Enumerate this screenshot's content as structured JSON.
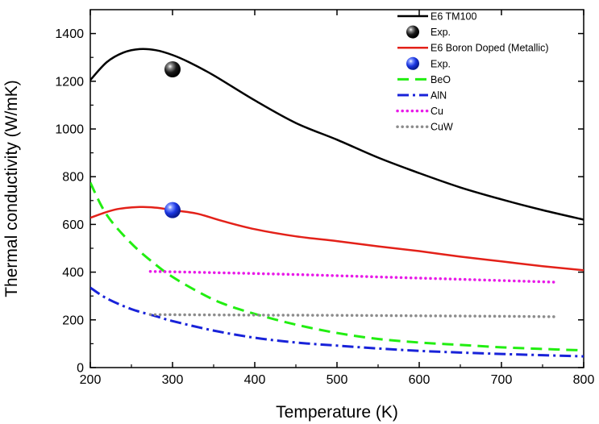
{
  "chart_data": {
    "type": "line",
    "xlabel": "Temperature (K)",
    "ylabel": "Thermal conductivity (W/mK)",
    "xlim": [
      200,
      800
    ],
    "ylim": [
      0,
      1500
    ],
    "xticks": [
      200,
      300,
      400,
      500,
      600,
      700,
      800
    ],
    "yticks": [
      0,
      200,
      400,
      600,
      800,
      1000,
      1200,
      1400
    ],
    "legend_position": "top-right",
    "series": [
      {
        "name": "E6 TM100",
        "kind": "line",
        "style": "solid",
        "color": "#000000",
        "x": [
          200,
          220,
          240,
          260,
          280,
          300,
          320,
          350,
          400,
          450,
          500,
          550,
          600,
          650,
          700,
          750,
          800
        ],
        "y": [
          1205,
          1280,
          1320,
          1335,
          1330,
          1310,
          1280,
          1225,
          1120,
          1025,
          955,
          880,
          815,
          755,
          705,
          660,
          620
        ]
      },
      {
        "name": "Exp.",
        "kind": "marker",
        "marker_style": "sphere",
        "color": "#000000",
        "x": [
          300
        ],
        "y": [
          1250
        ]
      },
      {
        "name": "E6 Boron Doped (Metallic)",
        "kind": "line",
        "style": "solid",
        "color": "#e32119",
        "x": [
          200,
          230,
          260,
          280,
          300,
          330,
          360,
          400,
          450,
          500,
          550,
          600,
          650,
          700,
          750,
          800
        ],
        "y": [
          628,
          662,
          673,
          670,
          660,
          645,
          615,
          580,
          550,
          530,
          508,
          488,
          465,
          445,
          425,
          408
        ]
      },
      {
        "name": "Exp.",
        "kind": "marker",
        "marker_style": "sphere",
        "color": "#1a35e0",
        "x": [
          300
        ],
        "y": [
          660
        ]
      },
      {
        "name": "BeO",
        "kind": "line",
        "style": "dashed",
        "color": "#22ee11",
        "x": [
          200,
          220,
          250,
          280,
          300,
          330,
          360,
          400,
          450,
          500,
          550,
          600,
          650,
          700,
          750,
          800
        ],
        "y": [
          775,
          640,
          520,
          430,
          380,
          320,
          270,
          225,
          180,
          145,
          120,
          105,
          95,
          85,
          78,
          72
        ]
      },
      {
        "name": "AlN",
        "kind": "line",
        "style": "dash-dot",
        "color": "#1822d9",
        "x": [
          200,
          220,
          250,
          280,
          300,
          350,
          400,
          450,
          500,
          550,
          600,
          650,
          700,
          750,
          800
        ],
        "y": [
          335,
          290,
          245,
          215,
          195,
          155,
          125,
          105,
          92,
          80,
          70,
          63,
          57,
          52,
          47
        ]
      },
      {
        "name": "Cu",
        "kind": "line",
        "style": "dotted",
        "color": "#e81ae8",
        "x": [
          273,
          350,
          450,
          550,
          650,
          765
        ],
        "y": [
          403,
          398,
          390,
          380,
          370,
          358
        ]
      },
      {
        "name": "CuW",
        "kind": "line",
        "style": "dotted",
        "color": "#8c8c8c",
        "x": [
          273,
          400,
          500,
          600,
          700,
          765
        ],
        "y": [
          222,
          220,
          219,
          217,
          215,
          213
        ]
      }
    ]
  }
}
